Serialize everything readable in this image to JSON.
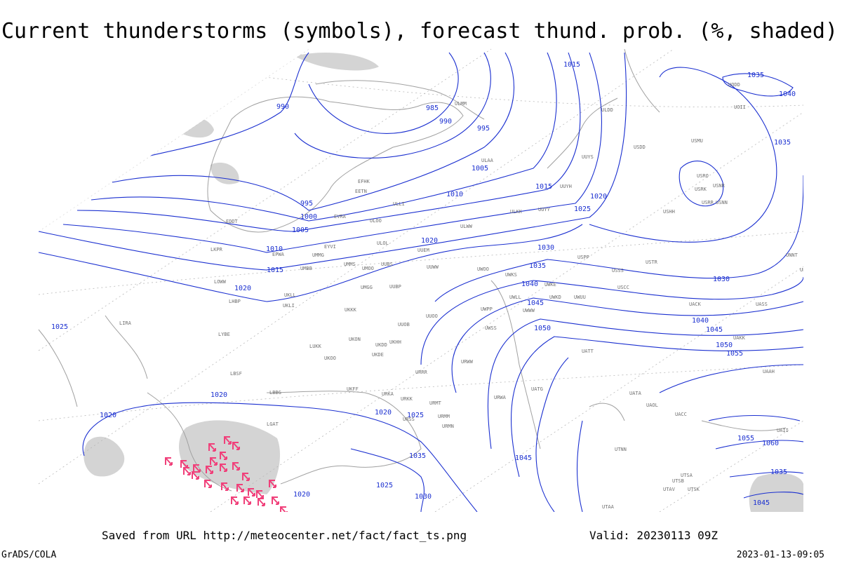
{
  "header": {
    "title": "Current thunderstorms (symbols), forecast thund. prob. (%, shaded)"
  },
  "footer": {
    "source": "Saved from URL http://meteocenter.net/fact/fact_ts.png",
    "valid": "Valid: 20230113 09Z",
    "credit": "GrADS/COLA",
    "timestamp": "2023-01-13-09:05"
  },
  "isobar_labels": [
    990,
    985,
    990,
    995,
    1005,
    1015,
    995,
    1000,
    1005,
    1010,
    1015,
    1020,
    1025,
    1020,
    1010,
    1015,
    1030,
    1035,
    1040,
    1045,
    1050,
    1020,
    1025,
    1020,
    1020,
    1020,
    1025,
    1035,
    1025,
    1030,
    1020,
    1045,
    1035,
    1040,
    1035,
    1030,
    1040,
    1045,
    1050,
    1055,
    1055,
    1060,
    1035,
    1045
  ],
  "stations": [
    "ULMM",
    "ULAA",
    "EFHK",
    "EETN",
    "ULLI",
    "EVRA",
    "ULOO",
    "EDDT",
    "ULOL",
    "EYVI",
    "UMMG",
    "EPWA",
    "UMBB",
    "LKPR",
    "UUEM",
    "UMMS",
    "UMOO",
    "UUBS",
    "UUWW",
    "LOWW",
    "UMGG",
    "UUBP",
    "UKLL",
    "UKLI",
    "LHBP",
    "UKKK",
    "LIRA",
    "LYBE",
    "UUOB",
    "UUOO",
    "UKHH",
    "UKON",
    "UKDD",
    "LUKK",
    "UKOO",
    "UKDE",
    "URRR",
    "LBSF",
    "LBBG",
    "UKFF",
    "URKA",
    "URKK",
    "URMT",
    "URSS",
    "URMM",
    "URMN",
    "LGAT",
    "ULWW",
    "ULKK",
    "UUYY",
    "UUYS",
    "UUYH",
    "UWOO",
    "UWKS",
    "UWKE",
    "UWKD",
    "UWUU",
    "UWLL",
    "UWWW",
    "UWPP",
    "UWSS",
    "USCC",
    "USSS",
    "USPP",
    "USTR",
    "UATT",
    "UATG",
    "UATA",
    "UAOL",
    "UACC",
    "UTNN",
    "UTAA",
    "UTSA",
    "UTSB",
    "UTSK",
    "UTAV",
    "USRR",
    "USNN",
    "USRK",
    "USNR",
    "USRO",
    "USHH",
    "USMU",
    "USDD",
    "ULDD",
    "UODD",
    "UOII",
    "UNNT",
    "UNBB",
    "UACK",
    "UASS",
    "UAKK",
    "UAAH",
    "UAII",
    "URWA",
    "URWW"
  ]
}
